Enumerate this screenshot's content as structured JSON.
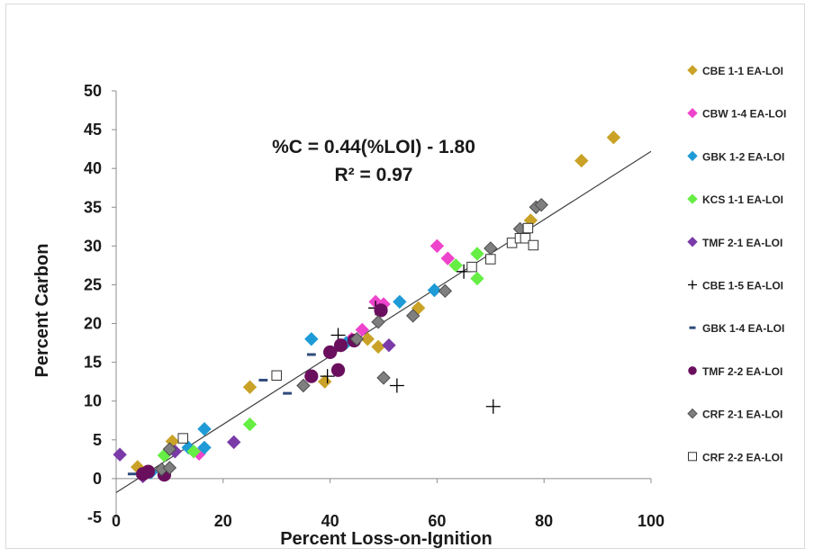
{
  "chart_data": {
    "type": "scatter",
    "xlabel": "Percent Loss-on-Ignition",
    "ylabel": "Percent Carbon",
    "xlim": [
      0,
      100
    ],
    "ylim": [
      -5,
      50
    ],
    "xticks": [
      0,
      20,
      40,
      60,
      80,
      100
    ],
    "yticks": [
      -5,
      0,
      5,
      10,
      15,
      20,
      25,
      30,
      35,
      40,
      45,
      50
    ],
    "grid": false,
    "legend_position": "right",
    "trendline": {
      "slope": 0.44,
      "intercept": -1.8,
      "equation": "%C = 0.44(%LOI) - 1.80",
      "r_squared": "R² = 0.97",
      "color": "#404040"
    },
    "series": [
      {
        "name": "CBE 1-1 EA-LOI",
        "marker": "diamond",
        "color": "#c9a227",
        "points": [
          [
            4,
            1.5
          ],
          [
            10.5,
            4.8
          ],
          [
            25,
            11.8
          ],
          [
            39,
            12.5
          ],
          [
            47,
            18
          ],
          [
            49,
            17
          ],
          [
            56.5,
            22
          ],
          [
            87,
            41
          ],
          [
            93,
            44
          ],
          [
            77.5,
            33.3
          ]
        ]
      },
      {
        "name": "CBW 1-4 EA-LOI",
        "marker": "diamond",
        "color": "#ee44cc",
        "points": [
          [
            15.5,
            3.2
          ],
          [
            46,
            19.2
          ],
          [
            48.5,
            22.8
          ],
          [
            50,
            22.5
          ],
          [
            60,
            30
          ],
          [
            62,
            28.4
          ],
          [
            44,
            18
          ]
        ]
      },
      {
        "name": "GBK 1-2 EA-LOI",
        "marker": "diamond",
        "color": "#1e9bd7",
        "points": [
          [
            6.5,
            0.8
          ],
          [
            13.5,
            4
          ],
          [
            16.5,
            6.4
          ],
          [
            16.5,
            4
          ],
          [
            36.5,
            18
          ],
          [
            43,
            17.5
          ],
          [
            53,
            22.8
          ],
          [
            59.5,
            24.3
          ]
        ]
      },
      {
        "name": "KCS 1-1 EA-LOI",
        "marker": "diamond",
        "color": "#66ee44",
        "points": [
          [
            9,
            3
          ],
          [
            14.5,
            3.5
          ],
          [
            25,
            7
          ],
          [
            63.5,
            27.5
          ],
          [
            67.5,
            25.8
          ],
          [
            67.5,
            29
          ]
        ]
      },
      {
        "name": "TMF 2-1 EA-LOI",
        "marker": "diamond",
        "color": "#7a3aa8",
        "points": [
          [
            0.7,
            3.1
          ],
          [
            5,
            0.3
          ],
          [
            11,
            3.5
          ],
          [
            22,
            4.7
          ],
          [
            51,
            17.2
          ]
        ]
      },
      {
        "name": "CBE 1-5 EA-LOI",
        "marker": "plus",
        "color": "#000000",
        "points": [
          [
            41.5,
            18.5
          ],
          [
            48.5,
            22
          ],
          [
            52.5,
            12
          ],
          [
            65,
            26.7
          ],
          [
            70.5,
            9.3
          ],
          [
            39.5,
            13.2
          ]
        ]
      },
      {
        "name": "GBK 1-4 EA-LOI",
        "marker": "dash",
        "color": "#2f4b7c",
        "points": [
          [
            3,
            0.6
          ],
          [
            27.5,
            12.7
          ],
          [
            32,
            11
          ],
          [
            36.5,
            16
          ]
        ]
      },
      {
        "name": "TMF 2-2 EA-LOI",
        "marker": "circle",
        "color": "#6a0f5e",
        "points": [
          [
            5,
            0.6
          ],
          [
            6,
            0.9
          ],
          [
            9,
            0.5
          ],
          [
            36.5,
            13.2
          ],
          [
            40,
            16.3
          ],
          [
            41.5,
            14
          ],
          [
            42,
            17.2
          ],
          [
            44.5,
            17.8
          ],
          [
            49.5,
            21.7
          ]
        ]
      },
      {
        "name": "CRF 2-1 EA-LOI",
        "marker": "diamond",
        "color": "#7f7f7f",
        "points": [
          [
            8.5,
            1.2
          ],
          [
            10,
            3.8
          ],
          [
            10,
            1.4
          ],
          [
            35,
            12
          ],
          [
            45,
            18
          ],
          [
            49,
            20.2
          ],
          [
            50,
            13
          ],
          [
            55.5,
            21
          ],
          [
            61.5,
            24.2
          ],
          [
            70,
            29.7
          ],
          [
            75.5,
            32.2
          ],
          [
            78.5,
            35
          ],
          [
            79.5,
            35.3
          ]
        ]
      },
      {
        "name": "CRF 2-2 EA-LOI",
        "marker": "square",
        "color": "#ffffff",
        "points": [
          [
            12.5,
            5.2
          ],
          [
            30,
            13.3
          ],
          [
            66.5,
            27.3
          ],
          [
            70,
            28.3
          ],
          [
            74,
            30.4
          ],
          [
            75.5,
            31
          ],
          [
            76.5,
            31
          ],
          [
            77,
            32.3
          ],
          [
            78,
            30.1
          ]
        ]
      }
    ]
  }
}
